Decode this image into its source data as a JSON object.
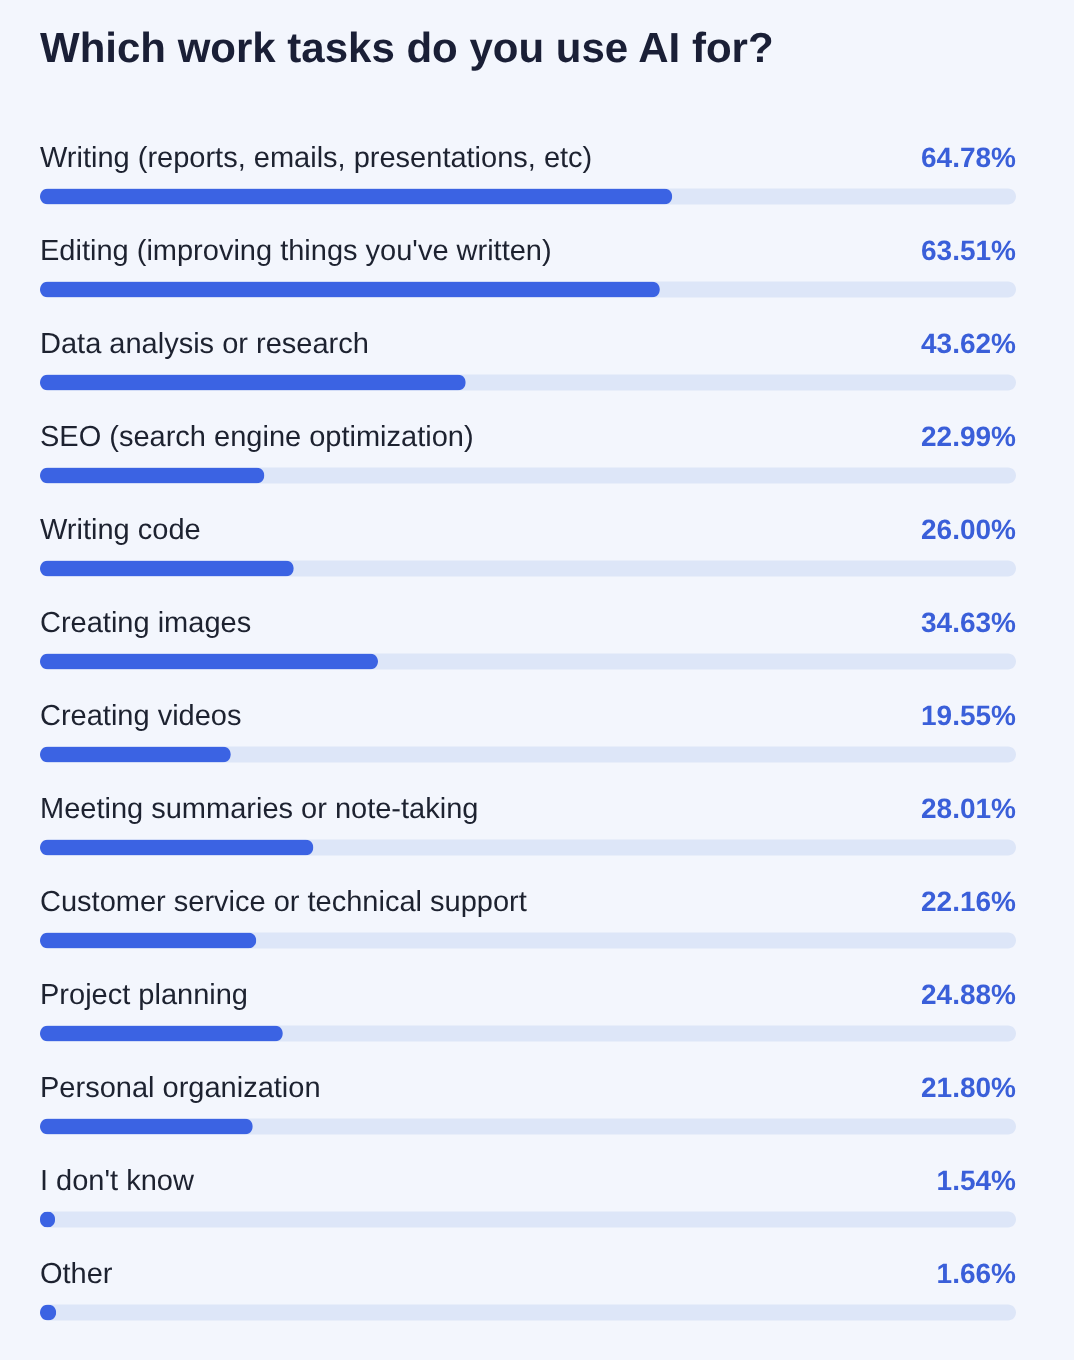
{
  "chart_data": {
    "type": "bar",
    "orientation": "horizontal",
    "title": "Which work tasks do you use AI for?",
    "categories": [
      "Writing (reports, emails, presentations, etc)",
      "Editing (improving things you've written)",
      "Data analysis or research",
      "SEO (search engine optimization)",
      "Writing code",
      "Creating images",
      "Creating videos",
      "Meeting summaries or note-taking",
      "Customer service or technical support",
      "Project planning",
      "Personal organization",
      "I don't know",
      "Other"
    ],
    "values": [
      64.78,
      63.51,
      43.62,
      22.99,
      26.0,
      34.63,
      19.55,
      28.01,
      22.16,
      24.88,
      21.8,
      1.54,
      1.66
    ],
    "value_labels": [
      "64.78%",
      "63.51%",
      "43.62%",
      "22.99%",
      "26.00%",
      "34.63%",
      "19.55%",
      "28.01%",
      "22.16%",
      "24.88%",
      "21.80%",
      "1.54%",
      "1.66%"
    ],
    "color": "#3b63e3",
    "xlim": [
      0,
      100
    ]
  }
}
